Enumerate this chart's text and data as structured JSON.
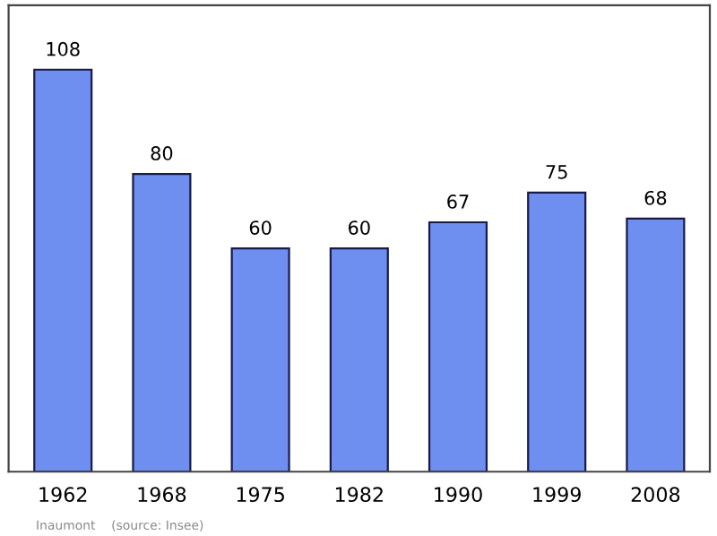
{
  "chart_data": {
    "type": "bar",
    "categories": [
      "1962",
      "1968",
      "1975",
      "1982",
      "1990",
      "1999",
      "2008"
    ],
    "values": [
      108,
      80,
      60,
      60,
      67,
      75,
      68
    ],
    "color": "#6e8ff0",
    "data_labels": true,
    "grid": false,
    "legend": false,
    "annotations": [
      "Inaumont    (source: Insee)"
    ]
  }
}
